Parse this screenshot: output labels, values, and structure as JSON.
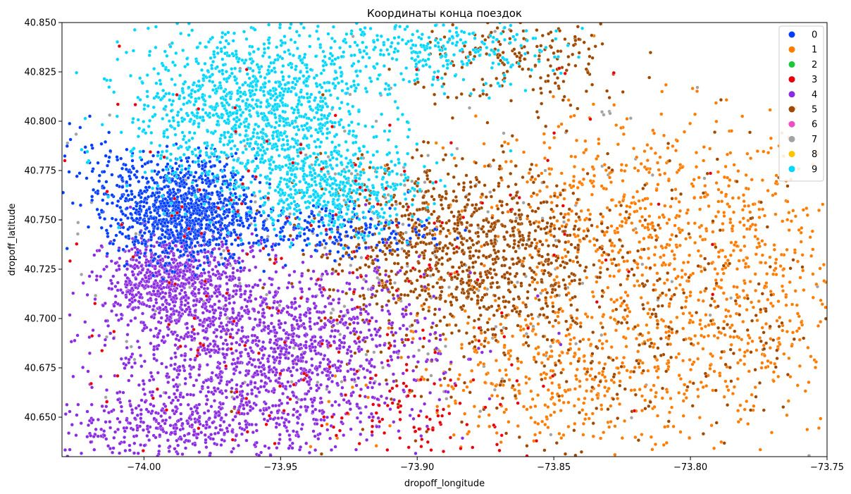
{
  "chart_data": {
    "type": "scatter",
    "title": "Координаты конца поездок",
    "xlabel": "dropoff_longitude",
    "ylabel": "dropoff_latitude",
    "xlim": [
      -74.03,
      -73.75
    ],
    "ylim": [
      40.63,
      40.85
    ],
    "x_ticks": [
      -74.0,
      -73.95,
      -73.9,
      -73.85,
      -73.8,
      -73.75
    ],
    "x_tick_labels": [
      "−74.00",
      "−73.95",
      "−73.90",
      "−73.85",
      "−73.80",
      "−73.75"
    ],
    "y_ticks": [
      40.65,
      40.675,
      40.7,
      40.725,
      40.75,
      40.775,
      40.8,
      40.825,
      40.85
    ],
    "y_tick_labels": [
      "40.650",
      "40.675",
      "40.700",
      "40.725",
      "40.750",
      "40.775",
      "40.800",
      "40.825",
      "40.850"
    ],
    "grid": false,
    "legend_position": "top-right",
    "legend_labels": [
      "0",
      "1",
      "2",
      "3",
      "4",
      "5",
      "6",
      "7",
      "8",
      "9"
    ],
    "colors": [
      "#023eff",
      "#ff7c00",
      "#1ac938",
      "#e8000b",
      "#8b2be2",
      "#9f4800",
      "#f14cc1",
      "#a3a3a3",
      "#ffc400",
      "#00d7ff"
    ],
    "clusters": [
      {
        "label": "0",
        "regions": [
          {
            "cx": -73.985,
            "cy": 40.755,
            "sx": 0.013,
            "sy": 0.013,
            "n": 1100
          },
          {
            "cx": -73.935,
            "cy": 40.745,
            "sx": 0.02,
            "sy": 0.007,
            "n": 220
          },
          {
            "cx": -74.015,
            "cy": 40.775,
            "sx": 0.008,
            "sy": 0.012,
            "n": 60
          }
        ]
      },
      {
        "label": "1",
        "regions": [
          {
            "cx": -73.82,
            "cy": 40.745,
            "sx": 0.035,
            "sy": 0.03,
            "n": 700
          },
          {
            "cx": -73.84,
            "cy": 40.67,
            "sx": 0.035,
            "sy": 0.02,
            "n": 500
          },
          {
            "cx": -73.78,
            "cy": 40.71,
            "sx": 0.02,
            "sy": 0.035,
            "n": 300
          }
        ]
      },
      {
        "label": "2",
        "regions": []
      },
      {
        "label": "3",
        "regions": [
          {
            "cx": -73.94,
            "cy": 40.72,
            "sx": 0.07,
            "sy": 0.06,
            "n": 240
          },
          {
            "cx": -73.9,
            "cy": 40.65,
            "sx": 0.02,
            "sy": 0.012,
            "n": 80
          }
        ]
      },
      {
        "label": "4",
        "regions": [
          {
            "cx": -73.99,
            "cy": 40.72,
            "sx": 0.012,
            "sy": 0.012,
            "n": 700
          },
          {
            "cx": -73.955,
            "cy": 40.685,
            "sx": 0.03,
            "sy": 0.022,
            "n": 1500
          },
          {
            "cx": -73.985,
            "cy": 40.645,
            "sx": 0.03,
            "sy": 0.01,
            "n": 450
          }
        ]
      },
      {
        "label": "5",
        "regions": [
          {
            "cx": -73.885,
            "cy": 40.735,
            "sx": 0.025,
            "sy": 0.022,
            "n": 1000
          },
          {
            "cx": -73.86,
            "cy": 40.83,
            "sx": 0.02,
            "sy": 0.012,
            "n": 200
          },
          {
            "cx": -73.83,
            "cy": 40.7,
            "sx": 0.05,
            "sy": 0.04,
            "n": 400
          }
        ]
      },
      {
        "label": "6",
        "regions": []
      },
      {
        "label": "7",
        "regions": [
          {
            "cx": -73.92,
            "cy": 40.73,
            "sx": 0.06,
            "sy": 0.05,
            "n": 280
          }
        ]
      },
      {
        "label": "8",
        "regions": []
      },
      {
        "label": "9",
        "regions": [
          {
            "cx": -73.96,
            "cy": 40.805,
            "sx": 0.022,
            "sy": 0.022,
            "n": 1300
          },
          {
            "cx": -73.93,
            "cy": 40.765,
            "sx": 0.015,
            "sy": 0.01,
            "n": 450
          },
          {
            "cx": -73.9,
            "cy": 40.835,
            "sx": 0.025,
            "sy": 0.009,
            "n": 300
          }
        ]
      }
    ]
  }
}
